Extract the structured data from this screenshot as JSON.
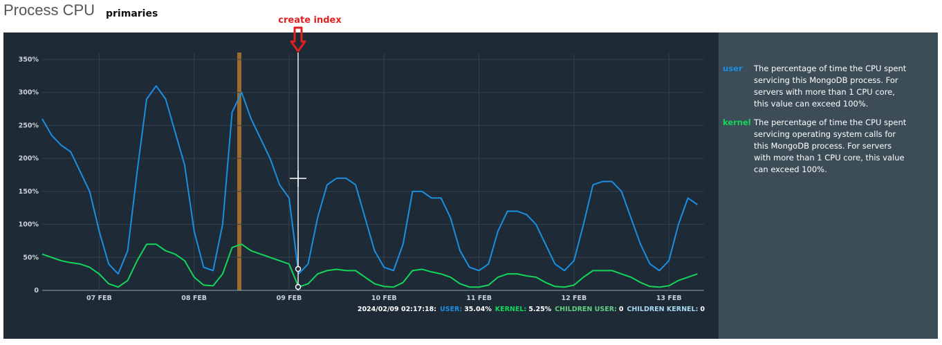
{
  "chart_data": {
    "type": "line",
    "title": "Process CPU",
    "subtitle": "primaries",
    "annotation": {
      "text": "create index",
      "x": 9.095
    },
    "x": [
      6.4,
      6.5,
      6.6,
      6.7,
      6.8,
      6.9,
      7.0,
      7.1,
      7.2,
      7.3,
      7.4,
      7.5,
      7.6,
      7.7,
      7.8,
      7.9,
      8.0,
      8.1,
      8.2,
      8.3,
      8.4,
      8.5,
      8.6,
      8.7,
      8.8,
      8.9,
      9.0,
      9.1,
      9.2,
      9.3,
      9.4,
      9.5,
      9.6,
      9.7,
      9.8,
      9.9,
      10.0,
      10.1,
      10.2,
      10.3,
      10.4,
      10.5,
      10.6,
      10.7,
      10.8,
      10.9,
      11.0,
      11.1,
      11.2,
      11.3,
      11.4,
      11.5,
      11.6,
      11.7,
      11.8,
      11.9,
      12.0,
      12.1,
      12.2,
      12.3,
      12.4,
      12.5,
      12.6,
      12.7,
      12.8,
      12.9,
      13.0,
      13.1,
      13.2,
      13.3
    ],
    "series": [
      {
        "name": "user",
        "color": "#1a8fe3",
        "description": "The percentage of time the CPU spent servicing this MongoDB process. For servers with more than 1 CPU core, this value can exceed 100%.",
        "values": [
          260,
          235,
          220,
          210,
          180,
          150,
          90,
          40,
          25,
          60,
          180,
          290,
          310,
          290,
          240,
          190,
          90,
          35,
          30,
          100,
          270,
          300,
          260,
          230,
          200,
          160,
          140,
          25,
          40,
          110,
          160,
          170,
          170,
          160,
          110,
          60,
          35,
          30,
          70,
          150,
          150,
          140,
          140,
          110,
          60,
          35,
          30,
          40,
          90,
          120,
          120,
          115,
          100,
          70,
          40,
          30,
          45,
          100,
          160,
          165,
          165,
          150,
          110,
          70,
          40,
          30,
          45,
          100,
          140,
          130
        ]
      },
      {
        "name": "kernel",
        "color": "#13d65a",
        "description": "The percentage of time the CPU spent servicing operating system calls for this MongoDB process. For servers with more than 1 CPU core, this value can exceed 100%.",
        "values": [
          55,
          50,
          45,
          42,
          40,
          35,
          25,
          10,
          5,
          15,
          45,
          70,
          70,
          60,
          55,
          45,
          20,
          8,
          7,
          25,
          65,
          70,
          60,
          55,
          50,
          45,
          40,
          5,
          10,
          25,
          30,
          32,
          30,
          30,
          20,
          10,
          6,
          5,
          12,
          30,
          32,
          28,
          25,
          20,
          10,
          5,
          5,
          8,
          20,
          25,
          25,
          22,
          20,
          12,
          6,
          5,
          8,
          20,
          30,
          30,
          30,
          25,
          20,
          12,
          6,
          5,
          7,
          15,
          20,
          25
        ]
      }
    ],
    "xlim": [
      6.4,
      13.37
    ],
    "xticks": [
      {
        "value": 7,
        "label": "07 FEB"
      },
      {
        "value": 8,
        "label": "08 FEB"
      },
      {
        "value": 9,
        "label": "09 FEB"
      },
      {
        "value": 10,
        "label": "10 FEB"
      },
      {
        "value": 11,
        "label": "11 FEB"
      },
      {
        "value": 12,
        "label": "12 FEB"
      },
      {
        "value": 13,
        "label": "13 FEB"
      }
    ],
    "ylim": [
      0,
      350
    ],
    "yticks": [
      0,
      {
        "value": 50,
        "label": "50%"
      },
      {
        "value": 100,
        "label": "100%"
      },
      {
        "value": 150,
        "label": "150%"
      },
      {
        "value": 200,
        "label": "200%"
      },
      {
        "value": 250,
        "label": "250%"
      },
      {
        "value": 300,
        "label": "300%"
      },
      {
        "value": 350,
        "label": "350%"
      }
    ],
    "grid": true,
    "tooltip": {
      "time": "2024/02/09 02:17:18:",
      "items": [
        {
          "label": "USER:",
          "value": "35.04%",
          "color": "#1a8fe3"
        },
        {
          "label": "KERNEL:",
          "value": "5.25%",
          "color": "#13d65a"
        },
        {
          "label": "CHILDREN USER:",
          "value": "0",
          "color": "#5fcf82"
        },
        {
          "label": "CHILDREN KERNEL:",
          "value": "0",
          "color": "#a8d8f0"
        }
      ]
    }
  }
}
